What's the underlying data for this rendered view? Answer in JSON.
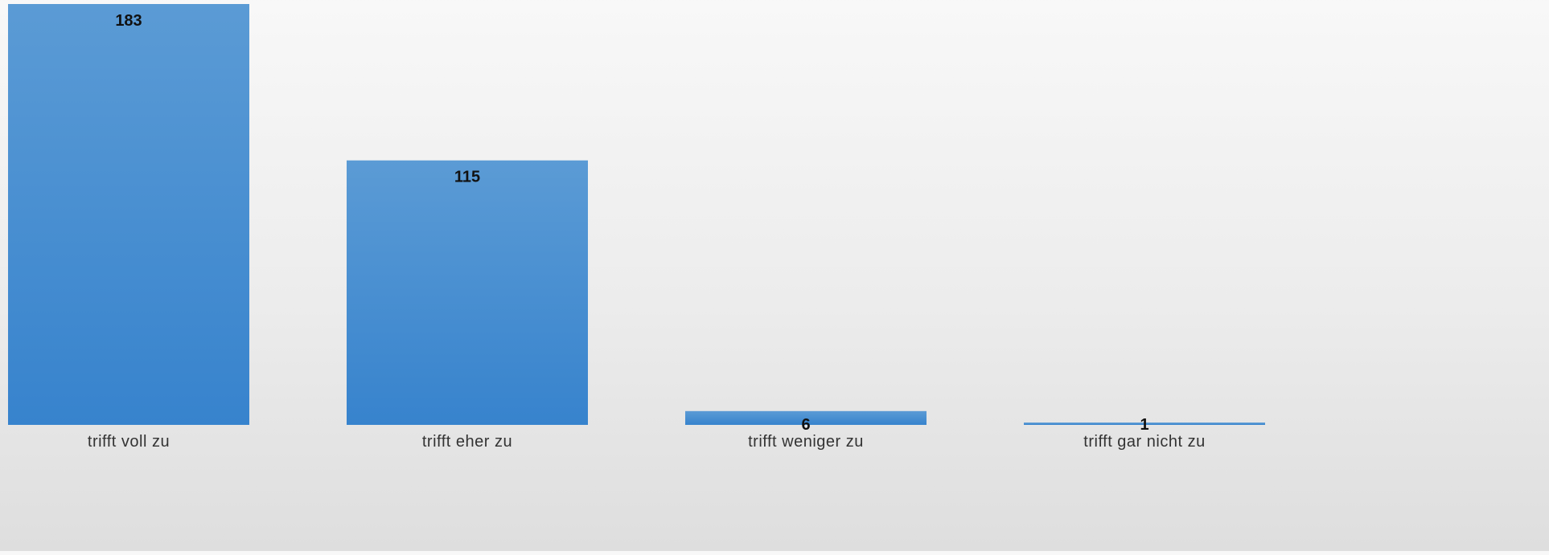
{
  "chart_data": {
    "type": "bar",
    "title": "",
    "xlabel": "",
    "ylabel": "",
    "categories": [
      "trifft voll zu",
      "trifft eher zu",
      "trifft weniger zu",
      "trifft gar nicht zu"
    ],
    "values": [
      183,
      115,
      6,
      1
    ],
    "data_labels": [
      "183",
      "115",
      "6",
      "1"
    ],
    "ylim": [
      0,
      183
    ],
    "grid": false,
    "legend": "none",
    "colors": {
      "bar_top": "#5b9bd5",
      "bar_bottom": "#3783cd",
      "background_top": "#f8f8f8",
      "background_bottom": "#dedede",
      "label_text": "#111111",
      "tick_text": "#333333"
    }
  }
}
